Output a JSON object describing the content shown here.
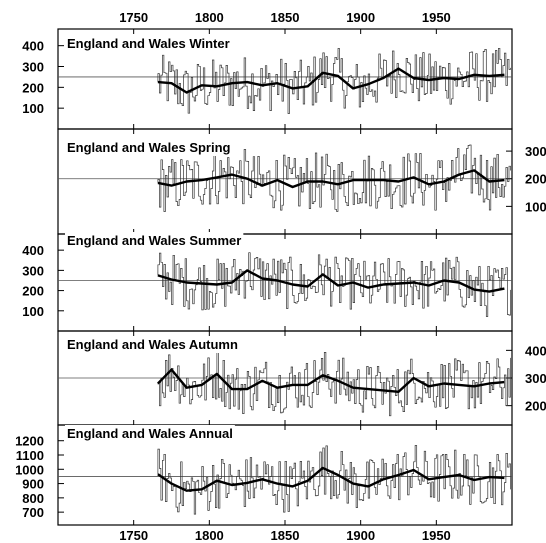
{
  "chart_data": {
    "type": "line",
    "xlim": [
      1700,
      2000
    ],
    "x_ticks": [
      1750,
      1800,
      1850,
      1900,
      1950
    ],
    "x_tick_labels_top": [
      "1750",
      "1800",
      "1850",
      "1900",
      "1950"
    ],
    "x_tick_labels_bottom": [
      "1750",
      "1800",
      "1850",
      "1900",
      "1950"
    ],
    "grid": false,
    "panels": [
      {
        "title": "England and Wales Winter",
        "y_axis_side": "left",
        "ylim": [
          0,
          480
        ],
        "y_ticks": [
          100,
          200,
          300,
          400
        ],
        "y_tick_labels": [
          "100",
          "200",
          "300",
          "400"
        ],
        "reference_line": 250,
        "smoothed_series": {
          "x": [
            1766,
            1775,
            1785,
            1795,
            1805,
            1815,
            1825,
            1835,
            1845,
            1855,
            1865,
            1875,
            1885,
            1895,
            1905,
            1915,
            1925,
            1935,
            1945,
            1955,
            1965,
            1975,
            1985,
            1995
          ],
          "y": [
            225,
            220,
            175,
            210,
            205,
            220,
            225,
            210,
            220,
            195,
            205,
            270,
            255,
            195,
            215,
            245,
            290,
            245,
            235,
            245,
            240,
            260,
            255,
            260
          ]
        }
      },
      {
        "title": "England and Wales Spring",
        "y_axis_side": "right",
        "ylim": [
          0,
          380
        ],
        "y_ticks": [
          100,
          200,
          300
        ],
        "y_tick_labels": [
          "100",
          "200",
          "300"
        ],
        "reference_line": 200,
        "smoothed_series": {
          "x": [
            1766,
            1775,
            1785,
            1795,
            1805,
            1815,
            1825,
            1835,
            1845,
            1855,
            1865,
            1875,
            1885,
            1895,
            1905,
            1915,
            1925,
            1935,
            1945,
            1955,
            1965,
            1975,
            1985,
            1995
          ],
          "y": [
            185,
            175,
            190,
            195,
            205,
            215,
            200,
            175,
            195,
            170,
            190,
            190,
            180,
            195,
            195,
            195,
            190,
            205,
            180,
            190,
            215,
            230,
            190,
            195
          ]
        }
      },
      {
        "title": "England and Wales Summer",
        "y_axis_side": "left",
        "ylim": [
          0,
          480
        ],
        "y_ticks": [
          100,
          200,
          300,
          400
        ],
        "y_tick_labels": [
          "100",
          "200",
          "300",
          "400"
        ],
        "reference_line": 250,
        "smoothed_series": {
          "x": [
            1766,
            1775,
            1785,
            1795,
            1805,
            1815,
            1825,
            1835,
            1845,
            1855,
            1865,
            1875,
            1885,
            1895,
            1905,
            1915,
            1925,
            1935,
            1945,
            1955,
            1965,
            1975,
            1985,
            1995
          ],
          "y": [
            275,
            255,
            240,
            235,
            230,
            240,
            300,
            260,
            250,
            230,
            220,
            280,
            225,
            240,
            215,
            230,
            235,
            240,
            225,
            250,
            240,
            205,
            195,
            210
          ]
        }
      },
      {
        "title": "England and Wales Autumn",
        "y_axis_side": "right",
        "ylim": [
          130,
          470
        ],
        "y_ticks": [
          200,
          300,
          400
        ],
        "y_tick_labels": [
          "200",
          "300",
          "400"
        ],
        "reference_line": 300,
        "smoothed_series": {
          "x": [
            1766,
            1775,
            1785,
            1795,
            1805,
            1815,
            1825,
            1835,
            1845,
            1855,
            1865,
            1875,
            1885,
            1895,
            1905,
            1915,
            1925,
            1935,
            1945,
            1955,
            1965,
            1975,
            1985,
            1995
          ],
          "y": [
            280,
            330,
            265,
            275,
            315,
            260,
            260,
            290,
            265,
            275,
            275,
            310,
            290,
            265,
            260,
            255,
            250,
            300,
            270,
            280,
            275,
            270,
            280,
            285
          ]
        }
      },
      {
        "title": "England and Wales Annual",
        "y_axis_side": "left",
        "ylim": [
          610,
          1310
        ],
        "y_ticks": [
          700,
          800,
          900,
          1000,
          1100,
          1200
        ],
        "y_tick_labels": [
          "700",
          "800",
          "900",
          "1000",
          "1100",
          "1200"
        ],
        "reference_line": 950,
        "smoothed_series": {
          "x": [
            1766,
            1775,
            1785,
            1795,
            1805,
            1815,
            1825,
            1835,
            1845,
            1855,
            1865,
            1875,
            1885,
            1895,
            1905,
            1915,
            1925,
            1935,
            1945,
            1955,
            1965,
            1975,
            1985,
            1995
          ],
          "y": [
            965,
            900,
            850,
            860,
            920,
            890,
            905,
            930,
            900,
            880,
            920,
            1010,
            960,
            900,
            880,
            930,
            960,
            995,
            930,
            945,
            960,
            925,
            945,
            940
          ]
        }
      }
    ]
  }
}
